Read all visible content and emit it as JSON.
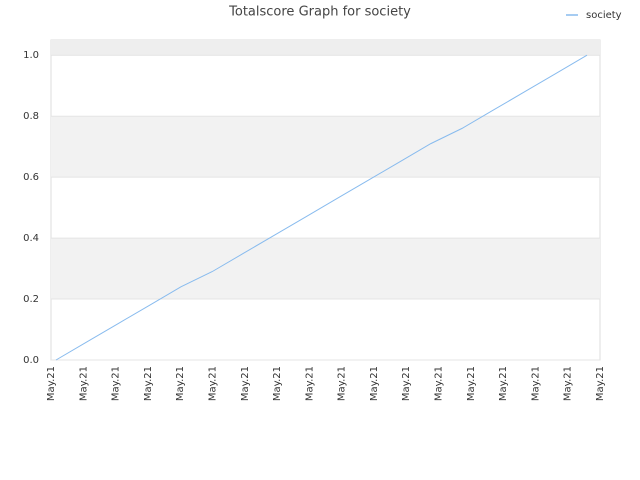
{
  "chart_data": {
    "type": "line",
    "title": "Totalscore Graph for society",
    "categories": [
      "May.21",
      "May.21",
      "May.21",
      "May.21",
      "May.21",
      "May.21",
      "May.21",
      "May.21",
      "May.21",
      "May.21",
      "May.21",
      "May.21",
      "May.21",
      "May.21",
      "May.21",
      "May.21",
      "May.21",
      "May.21"
    ],
    "series": [
      {
        "name": "society",
        "color": "#88bbee",
        "values": [
          0,
          0.06,
          0.12,
          0.18,
          0.24,
          0.29,
          0.35,
          0.41,
          0.47,
          0.53,
          0.59,
          0.65,
          0.71,
          0.76,
          0.82,
          0.88,
          0.94,
          1.0
        ]
      }
    ],
    "ylim": [
      0,
      1.05
    ],
    "yticks": [
      {
        "value": 0,
        "label": "0.0"
      },
      0.2,
      0.4,
      0.6,
      0.8,
      {
        "value": 1,
        "label": "1.0"
      }
    ],
    "grid": true,
    "legend": "top-right"
  }
}
